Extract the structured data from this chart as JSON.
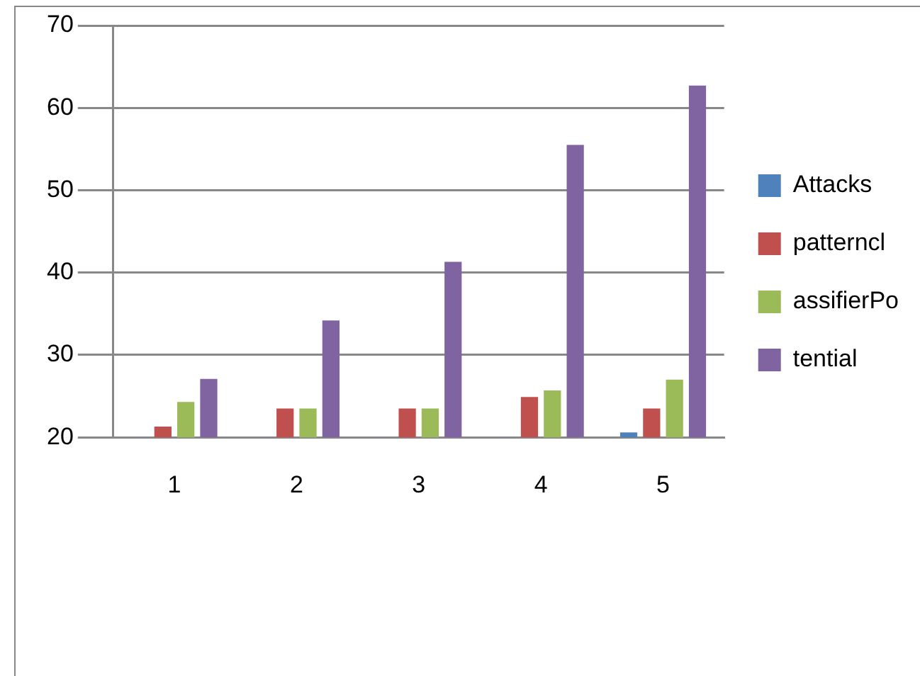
{
  "chart_data": {
    "type": "bar",
    "categories": [
      "1",
      "2",
      "3",
      "4",
      "5"
    ],
    "series": [
      {
        "name": "Attacks",
        "color": "#4f81bd",
        "values": [
          20,
          20,
          20,
          20,
          20.6
        ]
      },
      {
        "name": "patterncl",
        "color": "#c0504d",
        "values": [
          21.3,
          23.5,
          23.5,
          24.9,
          23.5
        ]
      },
      {
        "name": "assifierPo",
        "color": "#9bbb59",
        "values": [
          24.3,
          23.5,
          23.5,
          25.7,
          27
        ]
      },
      {
        "name": "tential",
        "color": "#8064a2",
        "values": [
          27.1,
          34.2,
          41.3,
          55.5,
          62.7
        ]
      }
    ],
    "ylim": [
      20,
      70
    ],
    "yticks": [
      20,
      30,
      40,
      50,
      60,
      70
    ],
    "grid": "y",
    "legend": "right"
  }
}
